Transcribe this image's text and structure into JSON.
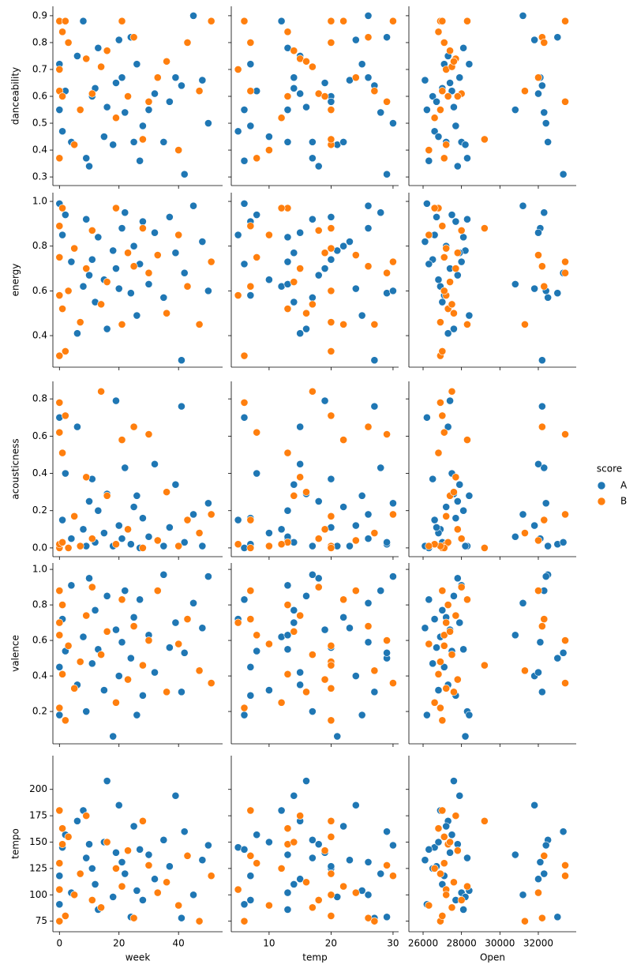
{
  "chart_data": {
    "type": "scatter",
    "legend_title": "score",
    "legend_position": "right",
    "x_axes": [
      {
        "label": "week",
        "xlim": [
          -2.2,
          54.8
        ],
        "xticks": [
          0,
          20,
          40
        ]
      },
      {
        "label": "temp",
        "xlim": [
          3.9,
          30.9
        ],
        "xticks": [
          10,
          20,
          30
        ]
      },
      {
        "label": "Open",
        "xlim": [
          25260,
          33974
        ],
        "xticks": [
          26000,
          28000,
          30000,
          32000
        ]
      }
    ],
    "y_axes": [
      {
        "label": "danceability",
        "ylim": [
          0.268,
          0.935
        ],
        "yticks": [
          0.3,
          0.4,
          0.5,
          0.6,
          0.7,
          0.8,
          0.9
        ]
      },
      {
        "label": "energy",
        "ylim": [
          0.259,
          1.039
        ],
        "yticks": [
          0.4,
          0.6,
          0.8,
          {
            "value": 1,
            "label": "1.0"
          }
        ]
      },
      {
        "label": "acousticness",
        "ylim": [
          -0.047,
          0.894
        ],
        "yticks": [
          {
            "value": 0,
            "label": "0.0"
          },
          0.2,
          0.4,
          0.6,
          0.8
        ]
      },
      {
        "label": "valence",
        "ylim": [
          0.018,
          1.036
        ],
        "yticks": [
          0.2,
          0.4,
          0.6,
          0.8,
          {
            "value": 1,
            "label": "1.0"
          }
        ]
      },
      {
        "label": "tempo",
        "ylim": [
          65,
          232
        ],
        "yticks": [
          75,
          100,
          125,
          150,
          175,
          200
        ]
      }
    ],
    "series": [
      {
        "name": "A",
        "color": "#1f77b4",
        "x": [
          [
            0,
            0,
            1,
            2,
            4,
            6,
            8,
            9,
            10,
            11,
            12,
            13,
            15,
            16,
            18,
            19,
            20,
            21,
            22,
            24,
            25,
            26,
            27,
            28,
            30,
            32,
            35,
            37,
            39,
            41,
            42,
            45,
            48,
            50
          ],
          [
            6,
            7,
            5,
            8,
            13,
            15,
            12,
            17,
            18,
            20,
            14,
            13,
            10,
            16,
            21,
            19,
            24,
            26,
            28,
            29,
            22,
            25,
            6,
            7,
            13,
            15,
            17,
            20,
            14,
            27,
            29,
            26,
            23,
            30
          ],
          [
            26200,
            27100,
            26600,
            27500,
            28000,
            27300,
            26900,
            28300,
            27800,
            26500,
            27000,
            28100,
            26800,
            27600,
            28200,
            27400,
            31800,
            32100,
            32300,
            33000,
            27200,
            28400,
            26300,
            27700,
            30800,
            32000,
            32500,
            26700,
            27900,
            32200,
            33300,
            31200,
            26100,
            32400
          ]
        ],
        "y": [
          [
            0.55,
            0.72,
            0.47,
            0.62,
            0.43,
            0.75,
            0.88,
            0.37,
            0.34,
            0.6,
            0.63,
            0.78,
            0.45,
            0.56,
            0.42,
            0.65,
            0.81,
            0.67,
            0.54,
            0.82,
            0.43,
            0.72,
            0.36,
            0.49,
            0.55,
            0.61,
            0.43,
            0.58,
            0.67,
            0.64,
            0.31,
            0.9,
            0.66,
            0.5
          ],
          [
            0.99,
            0.58,
            0.85,
            0.94,
            0.73,
            0.41,
            0.62,
            0.92,
            0.67,
            0.74,
            0.55,
            0.84,
            0.65,
            0.43,
            0.78,
            0.7,
            0.61,
            0.88,
            0.95,
            0.59,
            0.8,
            0.49,
            0.72,
            0.91,
            0.63,
            0.86,
            0.57,
            0.93,
            0.77,
            0.29,
            0.68,
            0.98,
            0.82,
            0.6
          ],
          [
            0.7,
            0.02,
            0.15,
            0.4,
            0.05,
            0.65,
            0.1,
            0.01,
            0.25,
            0.37,
            0.03,
            0.2,
            0.08,
            0.29,
            0.01,
            0.79,
            0.12,
            0.05,
            0.43,
            0.02,
            0.22,
            0.28,
            0.0,
            0.16,
            0.06,
            0.45,
            0.01,
            0.11,
            0.34,
            0.76,
            0.03,
            0.18,
            0.01,
            0.24
          ],
          [
            0.18,
            0.45,
            0.72,
            0.54,
            0.91,
            0.35,
            0.62,
            0.2,
            0.95,
            0.47,
            0.77,
            0.55,
            0.32,
            0.85,
            0.06,
            0.66,
            0.4,
            0.59,
            0.88,
            0.5,
            0.73,
            0.18,
            0.83,
            0.29,
            0.63,
            0.42,
            0.97,
            0.56,
            0.7,
            0.31,
            0.53,
            0.81,
            0.67,
            0.96
          ],
          [
            91,
            118,
            145,
            157,
            102,
            170,
            180,
            135,
            148,
            125,
            110,
            86,
            150,
            208,
            98,
            140,
            185,
            131,
            120,
            79,
            165,
            104,
            143,
            95,
            138,
            115,
            152,
            127,
            194,
            78,
            160,
            100,
            133,
            147
          ]
        ]
      },
      {
        "name": "B",
        "color": "#ff7f0e",
        "x": [
          [
            0,
            0,
            0,
            0,
            1,
            1,
            2,
            3,
            5,
            7,
            9,
            11,
            14,
            16,
            19,
            21,
            23,
            25,
            28,
            30,
            33,
            36,
            40,
            43,
            47,
            51
          ],
          [
            6,
            7,
            8,
            5,
            13,
            13,
            20,
            20,
            20,
            20,
            15,
            18,
            17,
            14,
            12,
            22,
            19,
            26,
            20,
            29,
            24,
            16,
            10,
            7,
            27,
            30
          ],
          [
            26900,
            27000,
            27100,
            27200,
            26800,
            27300,
            27000,
            27100,
            27200,
            26900,
            27700,
            28000,
            27500,
            27400,
            26600,
            28300,
            27800,
            32200,
            29200,
            33400,
            32000,
            27600,
            26300,
            32300,
            31300,
            33400
          ]
        ],
        "y": [
          [
            0.88,
            0.62,
            0.37,
            0.7,
            0.84,
            0.6,
            0.88,
            0.8,
            0.42,
            0.55,
            0.74,
            0.61,
            0.71,
            0.77,
            0.52,
            0.88,
            0.6,
            0.82,
            0.44,
            0.58,
            0.67,
            0.73,
            0.4,
            0.8,
            0.62,
            0.88
          ],
          [
            0.31,
            0.89,
            0.75,
            0.58,
            0.97,
            0.52,
            0.33,
            0.6,
            0.79,
            0.46,
            0.7,
            0.87,
            0.54,
            0.64,
            0.97,
            0.45,
            0.77,
            0.71,
            0.88,
            0.68,
            0.76,
            0.5,
            0.85,
            0.62,
            0.45,
            0.73
          ],
          [
            0.78,
            0.0,
            0.62,
            0.02,
            0.51,
            0.03,
            0.71,
            0.0,
            0.17,
            0.01,
            0.38,
            0.05,
            0.84,
            0.28,
            0.02,
            0.58,
            0.1,
            0.65,
            0.0,
            0.61,
            0.04,
            0.3,
            0.01,
            0.15,
            0.08,
            0.18
          ],
          [
            0.22,
            0.88,
            0.63,
            0.7,
            0.41,
            0.8,
            0.15,
            0.57,
            0.33,
            0.48,
            0.74,
            0.9,
            0.52,
            0.65,
            0.25,
            0.83,
            0.38,
            0.68,
            0.46,
            0.6,
            0.88,
            0.31,
            0.58,
            0.72,
            0.43,
            0.36
          ],
          [
            75,
            180,
            130,
            105,
            163,
            148,
            80,
            155,
            100,
            120,
            175,
            95,
            88,
            150,
            125,
            108,
            142,
            78,
            170,
            128,
            102,
            112,
            90,
            137,
            75,
            118
          ]
        ]
      }
    ]
  }
}
